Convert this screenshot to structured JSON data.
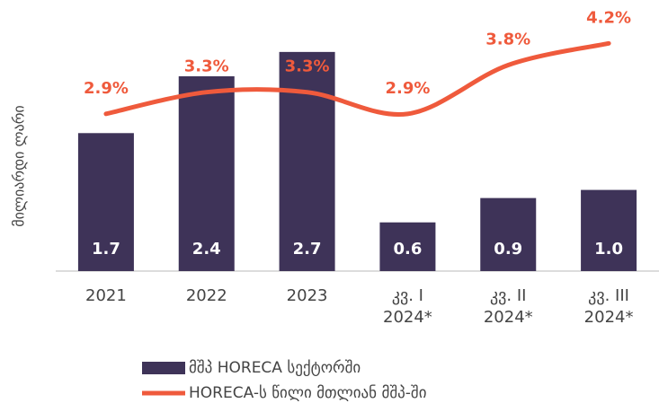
{
  "chart_data": {
    "type": "bar",
    "y_label": "მილიარდი ლარი",
    "categories": [
      [
        "2021"
      ],
      [
        "2022"
      ],
      [
        "2023"
      ],
      [
        "კვ. I",
        "2024*"
      ],
      [
        "კვ. II",
        "2024*"
      ],
      [
        "კვ. III",
        "2024*"
      ]
    ],
    "series": [
      {
        "name": "მშპ HORECA სექტორში",
        "type": "bar",
        "color": "#3e3358",
        "values": [
          1.7,
          2.4,
          2.7,
          0.6,
          0.9,
          1.0
        ],
        "value_labels": [
          "1.7",
          "2.4",
          "2.7",
          "0.6",
          "0.9",
          "1.0"
        ]
      },
      {
        "name": "HORECA-ს წილი მთლიან მშპ-ში",
        "type": "line",
        "axis": "y2",
        "color": "#ef5a3c",
        "values": [
          2.9,
          3.3,
          3.3,
          2.9,
          3.8,
          4.2
        ],
        "value_labels": [
          "2.9%",
          "3.3%",
          "3.3%",
          "2.9%",
          "3.8%",
          "4.2%"
        ]
      }
    ],
    "ylim": [
      0,
      3.34
    ],
    "y2lim": [
      0,
      5
    ]
  }
}
